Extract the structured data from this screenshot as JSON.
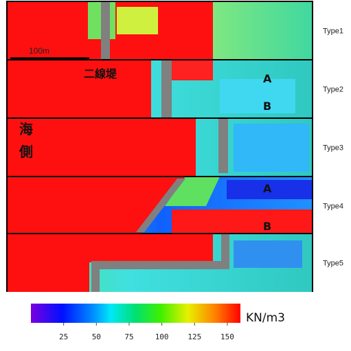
{
  "panels": [
    {
      "label": "Type1"
    },
    {
      "label": "Type2"
    },
    {
      "label": "Type3"
    },
    {
      "label": "Type4"
    },
    {
      "label": "Type5"
    }
  ],
  "annotations": {
    "scale": "100m",
    "levee": "二線堤",
    "sea": [
      "海",
      "側"
    ],
    "type2_points": [
      "A",
      "B"
    ],
    "type4_points": [
      "A",
      "B"
    ]
  },
  "colorbar": {
    "unit": "KN/m3",
    "lim": [
      0,
      160
    ],
    "ticks": [
      25,
      50,
      75,
      100,
      125,
      150
    ]
  }
}
